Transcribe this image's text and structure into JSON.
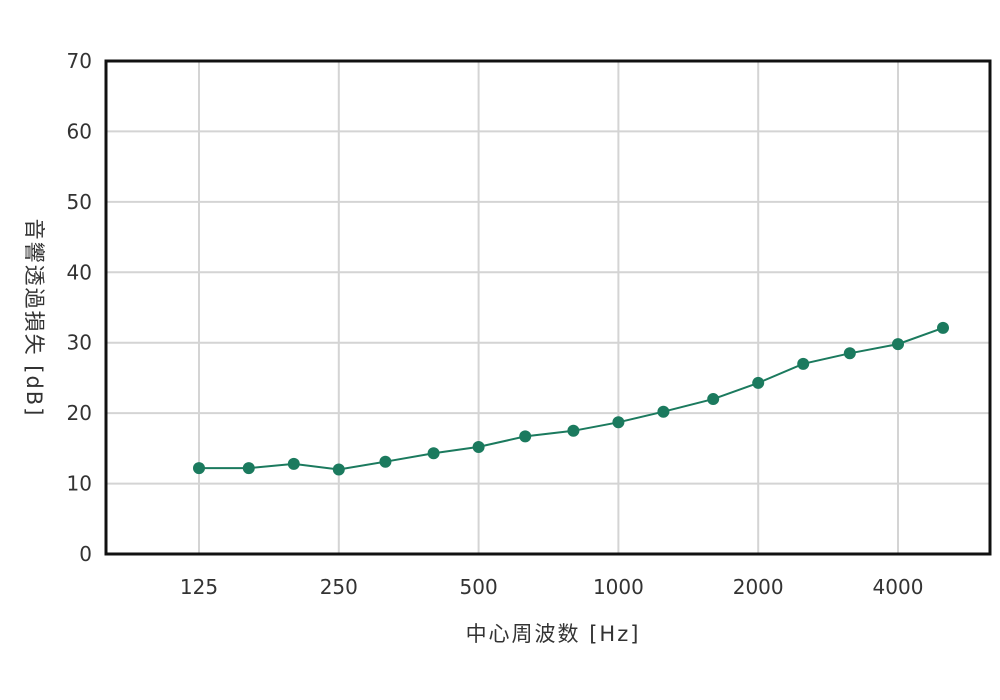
{
  "chart_data": {
    "type": "line",
    "title": "",
    "xlabel": "中心周波数 [Hz]",
    "ylabel": "音響透過損失 [dB]",
    "x_scale": "log",
    "x_tick_values": [
      125,
      250,
      500,
      1000,
      2000,
      4000
    ],
    "x_tick_labels": [
      "125",
      "250",
      "500",
      "1000",
      "2000",
      "4000"
    ],
    "xlim": [
      100,
      5000
    ],
    "ylim": [
      0,
      70
    ],
    "y_ticks": [
      0,
      10,
      20,
      30,
      40,
      50,
      60,
      70
    ],
    "grid": true,
    "legend": "none",
    "series": [
      {
        "color": "#1b7a5e",
        "x": [
          125,
          160,
          200,
          250,
          315,
          400,
          500,
          630,
          800,
          1000,
          1250,
          1600,
          2000,
          2500,
          3150,
          4000,
          5000
        ],
        "y": [
          12.2,
          12.2,
          12.8,
          12.0,
          13.1,
          14.3,
          15.2,
          16.7,
          17.5,
          18.7,
          20.2,
          22.0,
          24.3,
          27.0,
          28.5,
          29.8,
          32.1
        ]
      }
    ]
  }
}
